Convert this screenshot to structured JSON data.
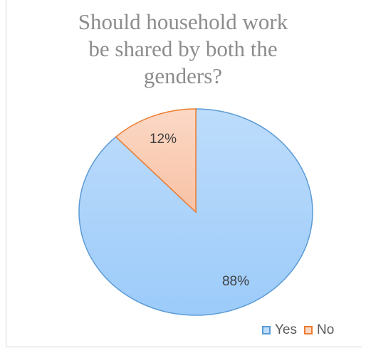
{
  "chart_data": {
    "type": "pie",
    "title_lines": [
      "Should household work",
      "be shared by both the",
      "genders?"
    ],
    "slices": [
      {
        "name": "Yes",
        "value": 88,
        "label": "88%",
        "fill": "#bddcfb",
        "fill_dark": "#9ccbfa",
        "stroke": "#5b9bd5"
      },
      {
        "name": "No",
        "value": 12,
        "label": "12%",
        "fill": "#fbd8c5",
        "fill_dark": "#f8c2a5",
        "stroke": "#ed7d31"
      }
    ],
    "legend_position": "bottom-right"
  }
}
